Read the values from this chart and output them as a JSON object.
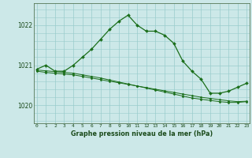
{
  "title": "Graphe pression niveau de la mer (hPa)",
  "background_color": "#cce8e8",
  "grid_color": "#99cccc",
  "line_color": "#1a6e1a",
  "x_hours": [
    0,
    1,
    2,
    3,
    4,
    5,
    6,
    7,
    8,
    9,
    10,
    11,
    12,
    13,
    14,
    15,
    16,
    17,
    18,
    19,
    20,
    21,
    22,
    23
  ],
  "line1": [
    1020.9,
    1021.0,
    1020.85,
    1020.85,
    1021.0,
    1021.2,
    1021.4,
    1021.65,
    1021.9,
    1022.1,
    1022.25,
    1022.0,
    1021.85,
    1021.85,
    1021.75,
    1021.55,
    1021.1,
    1020.85,
    1020.65,
    1020.3,
    1020.3,
    1020.35,
    1020.45,
    1020.55
  ],
  "line2": [
    1020.85,
    1020.82,
    1020.8,
    1020.78,
    1020.76,
    1020.72,
    1020.68,
    1020.64,
    1020.6,
    1020.56,
    1020.52,
    1020.48,
    1020.44,
    1020.4,
    1020.36,
    1020.32,
    1020.28,
    1020.24,
    1020.2,
    1020.17,
    1020.14,
    1020.11,
    1020.09,
    1020.1
  ],
  "line3": [
    1020.88,
    1020.86,
    1020.84,
    1020.82,
    1020.8,
    1020.76,
    1020.72,
    1020.68,
    1020.63,
    1020.58,
    1020.53,
    1020.48,
    1020.43,
    1020.38,
    1020.33,
    1020.28,
    1020.23,
    1020.18,
    1020.15,
    1020.12,
    1020.09,
    1020.07,
    1020.07,
    1020.09
  ],
  "ylim": [
    1019.55,
    1022.55
  ],
  "yticks": [
    1020.0,
    1021.0,
    1022.0
  ],
  "xlim": [
    -0.3,
    23.3
  ]
}
